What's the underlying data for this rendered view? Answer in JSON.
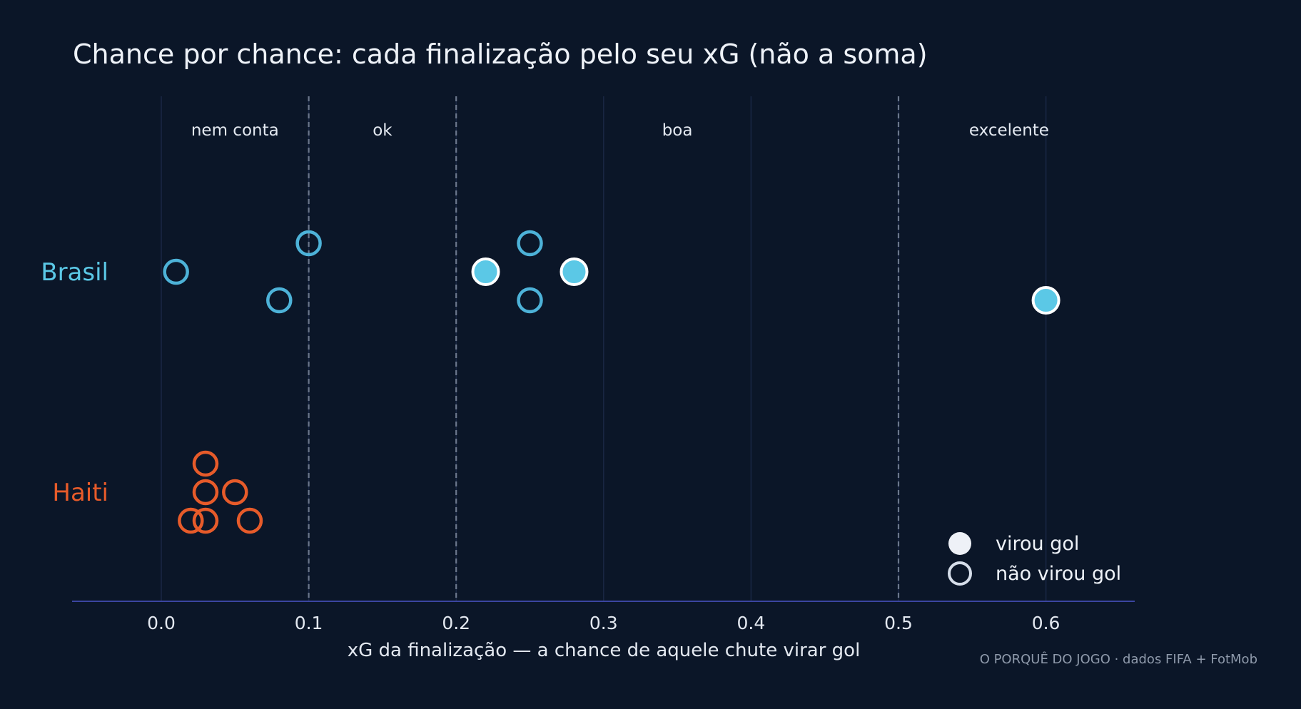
{
  "colors": {
    "background": "#0b1628",
    "grid": "#1a2744",
    "threshold": "#6b778c",
    "axis": "#3b45a0",
    "brasil": "#5bc8e6",
    "brasil_outline": "#4db2d8",
    "haiti": "#e75b2a",
    "goal_stroke": "#ffffff",
    "legend_fill": "#eef1f7",
    "legend_stroke": "#d6deea"
  },
  "chart_data": {
    "type": "scatter",
    "title": "Chance por chance: cada finalização pelo seu xG (não a soma)",
    "xlabel": "xG da finalização — a chance de aquele chute virar gol",
    "xlim": [
      -0.06,
      0.66
    ],
    "xticks": [
      0.0,
      0.1,
      0.2,
      0.3,
      0.4,
      0.5,
      0.6
    ],
    "tick_labels": [
      "0.0",
      "0.1",
      "0.2",
      "0.3",
      "0.4",
      "0.5",
      "0.6"
    ],
    "grid": true,
    "thresholds": [
      0.1,
      0.2,
      0.5
    ],
    "zones": [
      {
        "label": "nem conta",
        "from": 0.0,
        "to": 0.1
      },
      {
        "label": "ok",
        "from": 0.1,
        "to": 0.2
      },
      {
        "label": "boa",
        "from": 0.2,
        "to": 0.5
      },
      {
        "label": "excelente",
        "from": 0.5,
        "to": 0.65
      }
    ],
    "series": [
      {
        "name": "Brasil",
        "color": "#5bc8e6",
        "shots": [
          {
            "xg": 0.01,
            "goal": false
          },
          {
            "xg": 0.1,
            "goal": false
          },
          {
            "xg": 0.08,
            "goal": false
          },
          {
            "xg": 0.25,
            "goal": false
          },
          {
            "xg": 0.22,
            "goal": true
          },
          {
            "xg": 0.28,
            "goal": true
          },
          {
            "xg": 0.25,
            "goal": false
          },
          {
            "xg": 0.6,
            "goal": true
          }
        ]
      },
      {
        "name": "Haiti",
        "color": "#e75b2a",
        "shots": [
          {
            "xg": 0.03,
            "goal": false
          },
          {
            "xg": 0.03,
            "goal": false
          },
          {
            "xg": 0.05,
            "goal": false
          },
          {
            "xg": 0.02,
            "goal": false
          },
          {
            "xg": 0.03,
            "goal": false
          },
          {
            "xg": 0.06,
            "goal": false
          }
        ]
      }
    ],
    "legend": {
      "position": "bottom-right",
      "items": [
        {
          "label": "virou gol",
          "marker": "filled"
        },
        {
          "label": "não virou gol",
          "marker": "hollow"
        }
      ]
    }
  },
  "credit": "O PORQUÊ DO JOGO · dados FIFA + FotMob"
}
